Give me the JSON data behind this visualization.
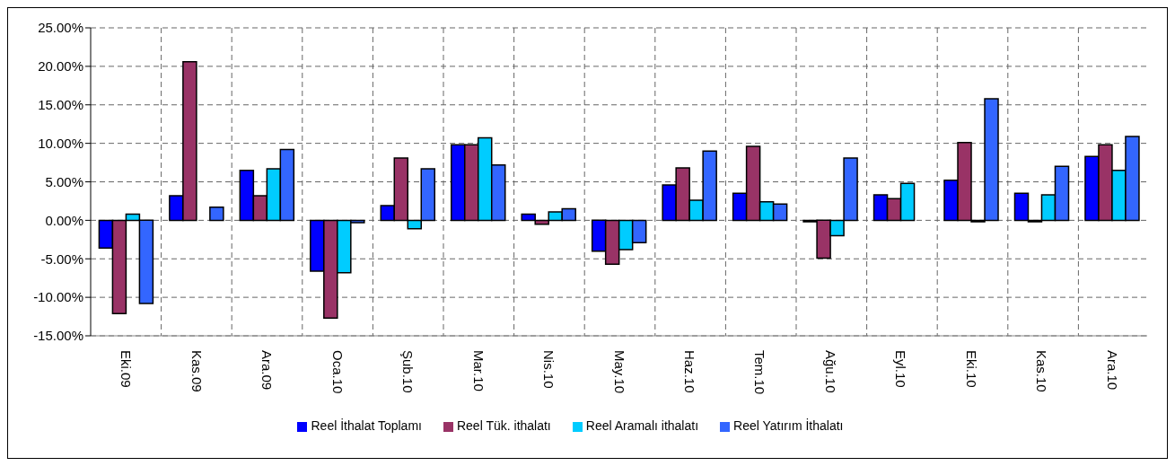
{
  "chart_data": {
    "type": "bar",
    "categories": [
      "Eki.09",
      "Kas.09",
      "Ara.09",
      "Oca.10",
      "Şub.10",
      "Mar.10",
      "Nis.10",
      "May.10",
      "Haz.10",
      "Tem.10",
      "Ağu.10",
      "Eyl.10",
      "Eki.10",
      "Kas.10",
      "Ara.10"
    ],
    "series": [
      {
        "name": "Reel İthalat Toplamı",
        "color": "#0000ff",
        "values": [
          -3.6,
          3.2,
          6.5,
          -6.6,
          1.9,
          9.8,
          0.8,
          -4.0,
          4.6,
          3.5,
          -0.2,
          3.3,
          5.2,
          3.5,
          8.3
        ]
      },
      {
        "name": "Reel Tük. ithalatı",
        "color": "#993366",
        "values": [
          -12.1,
          20.6,
          3.2,
          -12.7,
          8.1,
          9.8,
          -0.5,
          -5.7,
          6.8,
          9.6,
          -4.9,
          2.8,
          10.1,
          -0.2,
          9.8
        ]
      },
      {
        "name": "Reel Aramalı ithalatı",
        "color": "#00ccff",
        "values": [
          0.8,
          null,
          6.7,
          -6.8,
          -1.1,
          10.7,
          1.1,
          -3.8,
          2.6,
          2.4,
          -2.0,
          4.8,
          -0.2,
          3.3,
          6.5
        ]
      },
      {
        "name": "Reel Yatırım İthalatı",
        "color": "#3366ff",
        "values": [
          -10.8,
          1.7,
          9.2,
          -0.3,
          6.7,
          7.2,
          1.5,
          -2.9,
          9.0,
          2.1,
          8.1,
          null,
          15.8,
          7.0,
          10.9
        ]
      }
    ],
    "ylim": [
      -15,
      25
    ],
    "yticks": [
      {
        "value": -15,
        "label": "-15.00%"
      },
      {
        "value": -10,
        "label": "-10.00%"
      },
      {
        "value": -5,
        "label": "-5.00%"
      },
      {
        "value": 0,
        "label": "0.00%"
      },
      {
        "value": 5,
        "label": "5.00%"
      },
      {
        "value": 10,
        "label": "10.00%"
      },
      {
        "value": 15,
        "label": "15.00%"
      },
      {
        "value": 20,
        "label": "20.00%"
      },
      {
        "value": 25,
        "label": "25.00%"
      }
    ],
    "grid": true,
    "legend": "bottom"
  }
}
